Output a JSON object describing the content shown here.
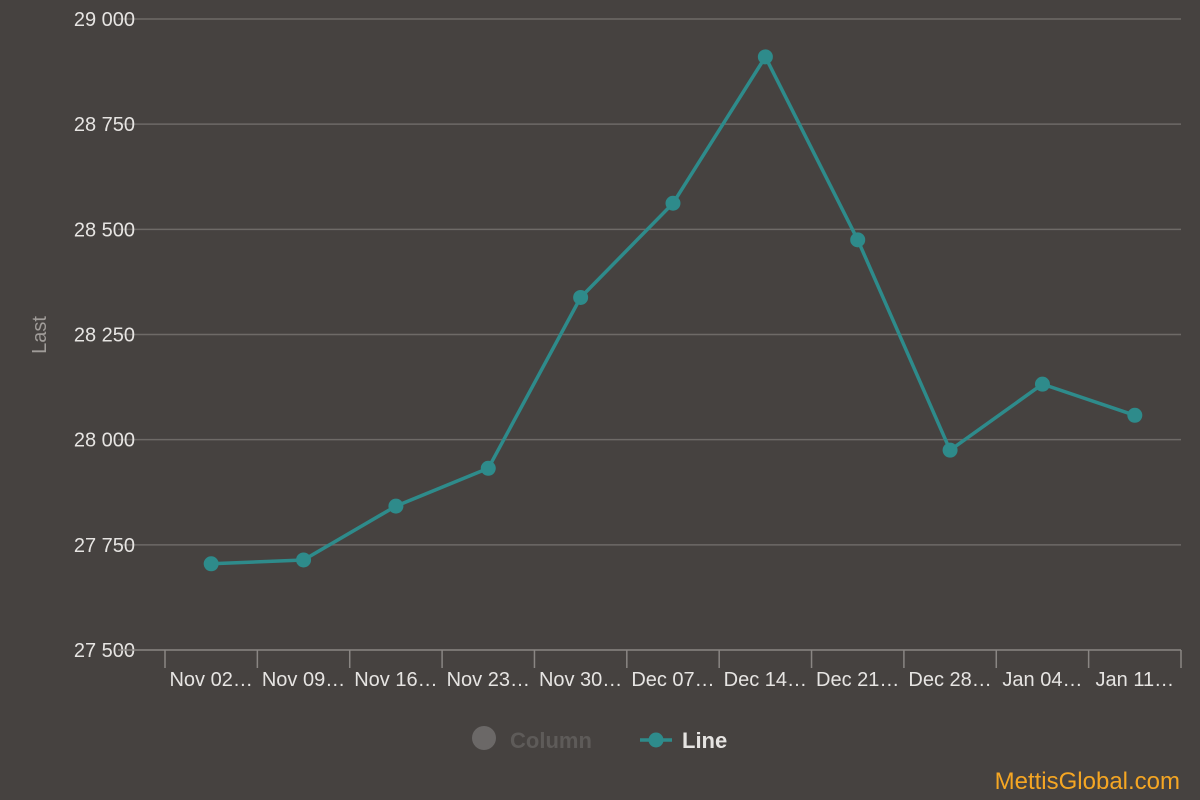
{
  "chart_data": {
    "type": "line",
    "categories": [
      "Nov 02…",
      "Nov 09…",
      "Nov 16…",
      "Nov 23…",
      "Nov 30…",
      "Dec 07…",
      "Dec 14…",
      "Dec 21…",
      "Dec 28…",
      "Jan 04…",
      "Jan 11…"
    ],
    "series": [
      {
        "name": "Line",
        "color": "#2e8b8b",
        "values": [
          27705,
          27714,
          27842,
          27932,
          28338,
          28562,
          28910,
          28475,
          27975,
          28132,
          28058
        ]
      }
    ],
    "ylabel": "Last",
    "ylim": [
      27500,
      29000
    ],
    "yticks": [
      27500,
      27750,
      28000,
      28250,
      28500,
      28750,
      29000
    ],
    "ytick_labels": [
      "27 500",
      "27 750",
      "28 000",
      "28 250",
      "28 500",
      "28 750",
      "29 000"
    ],
    "grid": true,
    "legend": {
      "placement": "bottom-center",
      "items": [
        {
          "label": "Column",
          "color": "#6b6867",
          "text_color": "#5e5b59",
          "disabled": true
        },
        {
          "label": "Line",
          "color": "#2e8b8b",
          "text_color": "#e6e4e2",
          "disabled": false
        }
      ]
    }
  },
  "watermark": "MettisGlobal.com",
  "colors": {
    "background": "#464240",
    "line": "#2e8b8b",
    "watermark": "#f5a623"
  }
}
